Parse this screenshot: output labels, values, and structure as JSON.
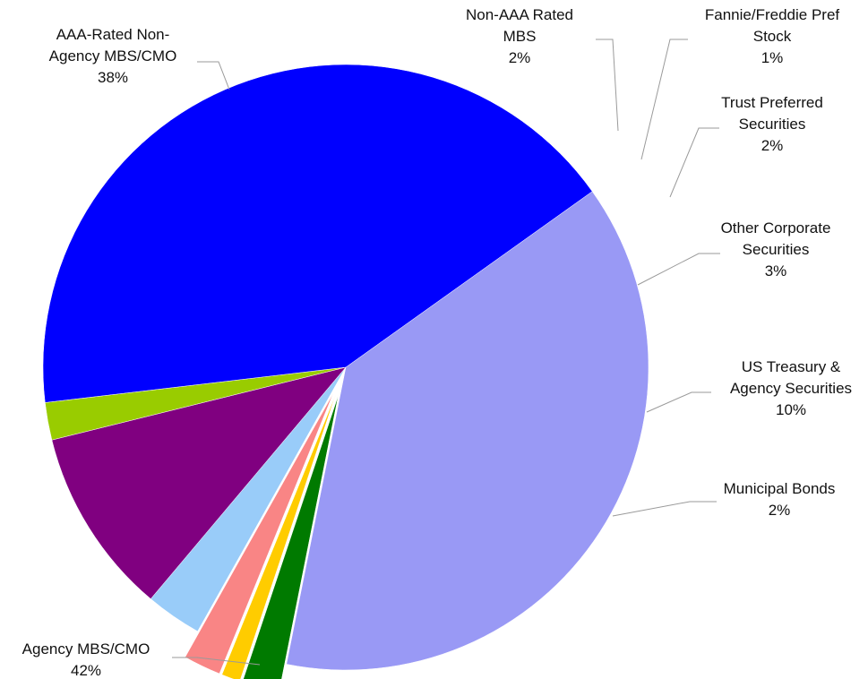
{
  "chart_data": {
    "type": "pie",
    "title": "",
    "legend": "none",
    "slices": [
      {
        "name": "AAA-Rated Non-Agency MBS/CMO",
        "label_lines": [
          "AAA-Rated Non-",
          "Agency MBS/CMO"
        ],
        "pct_label": "38%",
        "value": 38,
        "color": "#9999f5",
        "exploded": false
      },
      {
        "name": "Non-AAA Rated MBS",
        "label_lines": [
          "Non-AAA Rated",
          "MBS"
        ],
        "pct_label": "2%",
        "value": 2,
        "color": "#007a00",
        "exploded": true
      },
      {
        "name": "Fannie/Freddie Pref Stock",
        "label_lines": [
          "Fannie/Freddie Pref",
          "Stock"
        ],
        "pct_label": "1%",
        "value": 1,
        "color": "#ffcc00",
        "exploded": true
      },
      {
        "name": "Trust Preferred Securities",
        "label_lines": [
          "Trust Preferred",
          "Securities"
        ],
        "pct_label": "2%",
        "value": 2,
        "color": "#f98585",
        "exploded": true
      },
      {
        "name": "Other Corporate Securities",
        "label_lines": [
          "Other Corporate",
          "Securities"
        ],
        "pct_label": "3%",
        "value": 3,
        "color": "#99ccf9",
        "exploded": false
      },
      {
        "name": "US Treasury & Agency Securities",
        "label_lines": [
          "US Treasury &",
          "Agency Securities"
        ],
        "pct_label": "10%",
        "value": 10,
        "color": "#800080",
        "exploded": false
      },
      {
        "name": "Municipal Bonds",
        "label_lines": [
          "Municipal Bonds"
        ],
        "pct_label": "2%",
        "value": 2,
        "color": "#99cc00",
        "exploded": false
      },
      {
        "name": "Agency MBS/CMO",
        "label_lines": [
          "Agency MBS/CMO"
        ],
        "pct_label": "42%",
        "value": 42,
        "color": "#0000ff",
        "exploded": false
      }
    ]
  }
}
